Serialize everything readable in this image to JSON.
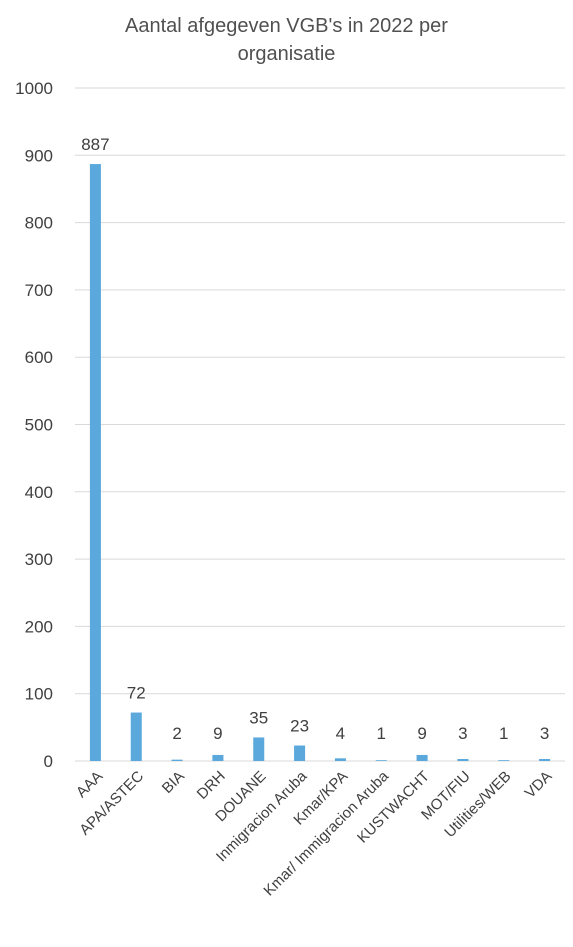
{
  "chart_data": {
    "type": "bar",
    "title_line1": "Aantal afgegeven VGB's in 2022 per",
    "title_line2": "organisatie",
    "categories": [
      "AAA",
      "APA/ASTEC",
      "BIA",
      "DRH",
      "DOUANE",
      "Inmigracion Aruba",
      "Kmar/KPA",
      "Kmar/ Immigracion Aruba",
      "KUSTWACHT",
      "MOT/FIU",
      "Utilities/WEB",
      "VDA"
    ],
    "values": [
      887,
      72,
      2,
      9,
      35,
      23,
      4,
      1,
      9,
      3,
      1,
      3
    ],
    "ylim": [
      0,
      1000
    ],
    "yticks": [
      0,
      100,
      200,
      300,
      400,
      500,
      600,
      700,
      800,
      900,
      1000
    ],
    "grid": true,
    "bar_color": "#5ba9dc",
    "grid_color": "#d9d9d9"
  }
}
